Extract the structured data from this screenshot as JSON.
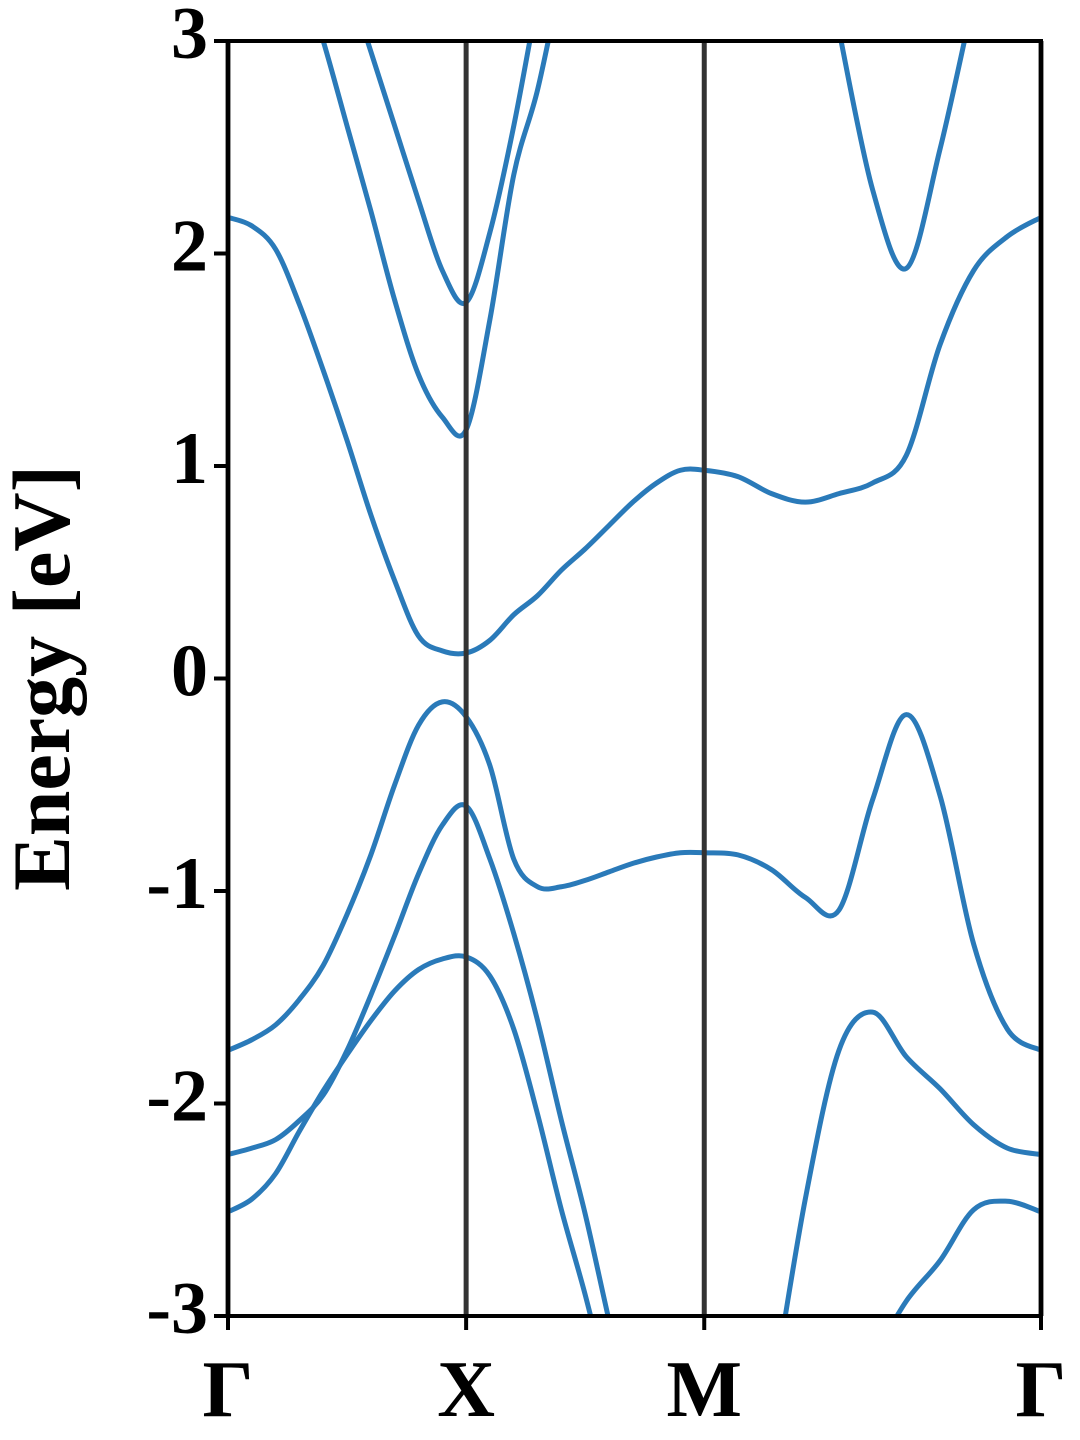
{
  "chart_data": {
    "type": "line",
    "ylabel": "Energy [eV]",
    "x": [
      0,
      0.1,
      0.2,
      0.3,
      0.4,
      0.5,
      0.6,
      0.7,
      0.8,
      0.9,
      1.0,
      1.1,
      1.2,
      1.3,
      1.4,
      1.5,
      1.6,
      1.7,
      1.8,
      1.9,
      2.0,
      2.1414,
      2.2828,
      2.4243,
      2.5657,
      2.7071,
      2.8485,
      2.9899,
      3.1314,
      3.2728,
      3.4142
    ],
    "series": [
      {
        "color": "#2a7ab9",
        "values": [
          2.17,
          2.13,
          2.02,
          1.76,
          1.45,
          1.12,
          0.77,
          0.46,
          0.2,
          0.13,
          0.12,
          0.18,
          0.3,
          0.39,
          0.51,
          0.61,
          0.72,
          0.83,
          0.92,
          0.98,
          0.98,
          0.95,
          0.87,
          0.83,
          0.87,
          0.92,
          1.05,
          1.57,
          1.92,
          2.08,
          2.17
        ]
      },
      {
        "color": "#2a7ab9",
        "values": [
          null,
          null,
          null,
          3.35,
          3.0,
          2.6,
          2.2,
          1.78,
          1.43,
          1.23,
          1.17,
          1.69,
          2.37,
          2.77,
          3.3,
          null,
          null,
          null,
          null,
          null,
          null,
          null,
          null,
          null,
          null,
          null,
          null,
          null,
          null,
          null,
          null
        ]
      },
      {
        "color": "#2a7ab9",
        "values": [
          null,
          null,
          null,
          null,
          null,
          3.3,
          2.95,
          2.6,
          2.25,
          1.92,
          1.77,
          2.1,
          2.6,
          3.2,
          null,
          null,
          null,
          null,
          null,
          null,
          null,
          null,
          null,
          null,
          null,
          null,
          null,
          null,
          null,
          null,
          null
        ]
      },
      {
        "color": "#2a7ab9",
        "values": [
          null,
          null,
          null,
          null,
          null,
          null,
          null,
          null,
          null,
          null,
          null,
          null,
          null,
          null,
          null,
          null,
          null,
          null,
          null,
          null,
          null,
          null,
          null,
          null,
          3.05,
          2.3,
          1.93,
          2.49,
          3.2,
          null,
          null
        ]
      },
      {
        "color": "#2a7ab9",
        "values": [
          -1.75,
          -1.7,
          -1.63,
          -1.51,
          -1.35,
          -1.11,
          -0.83,
          -0.5,
          -0.22,
          -0.11,
          -0.18,
          -0.41,
          -0.85,
          -0.98,
          -0.98,
          -0.95,
          -0.91,
          -0.87,
          -0.84,
          -0.82,
          -0.82,
          -0.83,
          -0.9,
          -1.03,
          -1.09,
          -0.57,
          -0.17,
          -0.55,
          -1.25,
          -1.65,
          -1.75
        ]
      },
      {
        "color": "#2a7ab9",
        "values": [
          -2.24,
          -2.21,
          -2.17,
          -2.08,
          -1.96,
          -1.75,
          -1.49,
          -1.21,
          -0.92,
          -0.69,
          -0.6,
          -0.85,
          -1.2,
          -1.61,
          -2.08,
          -2.52,
          -3.02,
          -3.5,
          null,
          null,
          null,
          null,
          null,
          null,
          null,
          null,
          null,
          null,
          null,
          null,
          null
        ]
      },
      {
        "color": "#2a7ab9",
        "values": [
          -2.51,
          -2.45,
          -2.33,
          -2.13,
          -1.94,
          -1.77,
          -1.61,
          -1.47,
          -1.37,
          -1.32,
          -1.31,
          -1.4,
          -1.65,
          -2.05,
          -2.5,
          -2.9,
          -3.35,
          null,
          null,
          null,
          null,
          null,
          null,
          null,
          null,
          null,
          null,
          null,
          null,
          null,
          null
        ]
      },
      {
        "color": "#2a7ab9",
        "values": [
          null,
          null,
          null,
          null,
          null,
          null,
          null,
          null,
          null,
          null,
          null,
          null,
          null,
          null,
          null,
          null,
          null,
          null,
          null,
          null,
          null,
          null,
          -3.4,
          -2.45,
          -1.75,
          -1.57,
          -1.78,
          -1.93,
          -2.1,
          -2.21,
          -2.24
        ]
      },
      {
        "color": "#2a7ab9",
        "values": [
          null,
          null,
          null,
          null,
          null,
          null,
          null,
          null,
          null,
          null,
          null,
          null,
          null,
          null,
          null,
          null,
          null,
          null,
          null,
          null,
          null,
          null,
          null,
          null,
          null,
          -3.2,
          -2.93,
          -2.74,
          -2.5,
          -2.46,
          -2.51
        ]
      }
    ],
    "xlim": [
      0,
      3.4142
    ],
    "xticks": [
      {
        "value": 0,
        "label": "Γ"
      },
      {
        "value": 1,
        "label": "X"
      },
      {
        "value": 2,
        "label": "M"
      },
      {
        "value": 3.4142,
        "label": "Γ"
      }
    ],
    "ylim": [
      -3,
      3
    ],
    "yticks": [
      -3,
      -2,
      -1,
      0,
      1,
      2,
      3
    ],
    "vlines_color": "#333333"
  }
}
